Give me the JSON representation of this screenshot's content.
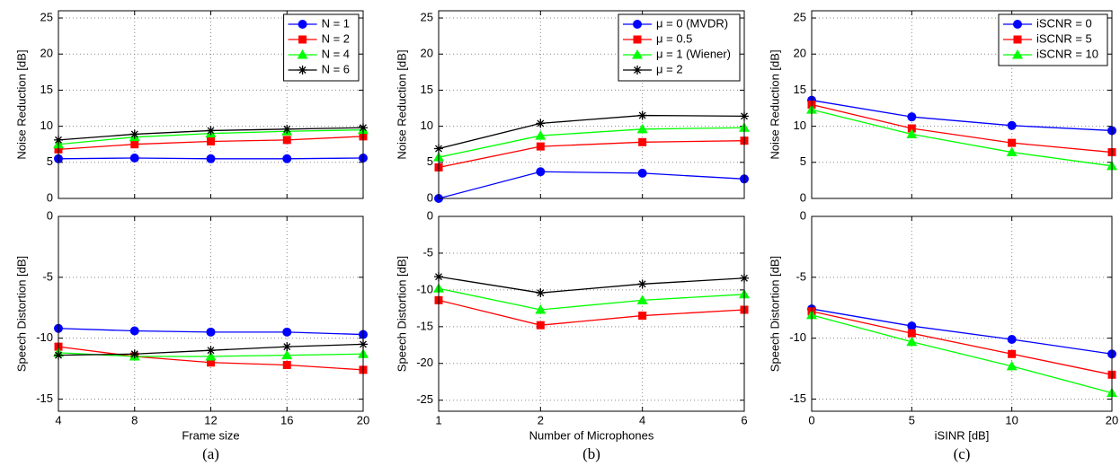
{
  "chart_data": [
    {
      "type": "line",
      "caption": "(a)",
      "xlabel": "Frame size",
      "categories": [
        "4",
        "8",
        "12",
        "16",
        "20"
      ],
      "legend": "upper right",
      "grid": true,
      "top": {
        "ylabel": "Noise Reduction [dB]",
        "ylim": [
          0,
          26
        ],
        "yticks": [
          0,
          5,
          10,
          15,
          20,
          25
        ],
        "series": [
          {
            "name": "N = 1",
            "color": "#0000ff",
            "marker": "circle",
            "values": [
              5.5,
              5.6,
              5.5,
              5.5,
              5.6
            ]
          },
          {
            "name": "N = 2",
            "color": "#ff0000",
            "marker": "square",
            "values": [
              6.8,
              7.5,
              7.9,
              8.1,
              8.6
            ]
          },
          {
            "name": "N = 4",
            "color": "#00ff00",
            "marker": "triangle",
            "values": [
              7.5,
              8.5,
              9.0,
              9.3,
              9.5
            ]
          },
          {
            "name": "N = 6",
            "color": "#000000",
            "marker": "star",
            "values": [
              8.1,
              8.9,
              9.4,
              9.6,
              9.8
            ]
          }
        ]
      },
      "bottom": {
        "ylabel": "Speech Distortion [dB]",
        "ylim": [
          -16,
          0
        ],
        "yticks": [
          -15,
          -10,
          -5,
          0
        ],
        "series": [
          {
            "color": "#0000ff",
            "marker": "circle",
            "values": [
              -9.2,
              -9.4,
              -9.5,
              -9.5,
              -9.7
            ]
          },
          {
            "color": "#ff0000",
            "marker": "square",
            "values": [
              -10.7,
              -11.5,
              -12.0,
              -12.2,
              -12.6
            ]
          },
          {
            "color": "#00ff00",
            "marker": "triangle",
            "values": [
              -11.2,
              -11.5,
              -11.5,
              -11.4,
              -11.3
            ]
          },
          {
            "color": "#000000",
            "marker": "star",
            "values": [
              -11.4,
              -11.3,
              -11.0,
              -10.7,
              -10.5
            ]
          }
        ]
      }
    },
    {
      "type": "line",
      "caption": "(b)",
      "xlabel": "Number of Microphones",
      "categories": [
        "1",
        "2",
        "4",
        "6"
      ],
      "legend": "upper right",
      "grid": true,
      "top": {
        "ylabel": "Noise Reduction [dB]",
        "ylim": [
          0,
          26
        ],
        "yticks": [
          0,
          5,
          10,
          15,
          20,
          25
        ],
        "series": [
          {
            "name": "μ = 0 (MVDR)",
            "color": "#0000ff",
            "marker": "circle",
            "values": [
              0,
              3.7,
              3.5,
              2.7
            ]
          },
          {
            "name": "μ = 0.5",
            "color": "#ff0000",
            "marker": "square",
            "values": [
              4.3,
              7.2,
              7.8,
              8.0
            ]
          },
          {
            "name": "μ = 1 (Wiener)",
            "color": "#00ff00",
            "marker": "triangle",
            "values": [
              5.7,
              8.7,
              9.6,
              9.8
            ]
          },
          {
            "name": "μ = 2",
            "color": "#000000",
            "marker": "star",
            "values": [
              6.9,
              10.4,
              11.5,
              11.4
            ]
          }
        ]
      },
      "bottom": {
        "ylabel": "Speech Distortion [dB]",
        "ylim": [
          -26.5,
          0
        ],
        "yticks": [
          -25,
          -20,
          -15,
          -10,
          -5,
          0
        ],
        "series": [
          {
            "color": "#ff0000",
            "marker": "square",
            "values": [
              -11.4,
              -14.8,
              -13.5,
              -12.7
            ]
          },
          {
            "color": "#00ff00",
            "marker": "triangle",
            "values": [
              -9.8,
              -12.7,
              -11.4,
              -10.6
            ]
          },
          {
            "color": "#000000",
            "marker": "star",
            "values": [
              -8.2,
              -10.4,
              -9.2,
              -8.4
            ]
          }
        ]
      }
    },
    {
      "type": "line",
      "caption": "(c)",
      "xlabel": "iSINR [dB]",
      "categories": [
        "0",
        "5",
        "10",
        "20"
      ],
      "legend": "upper right",
      "grid": true,
      "top": {
        "ylabel": "Noise Reduction [dB]",
        "ylim": [
          0,
          26
        ],
        "yticks": [
          0,
          5,
          10,
          15,
          20,
          25
        ],
        "series": [
          {
            "name": "iSCNR = 0",
            "color": "#0000ff",
            "marker": "circle",
            "values": [
              13.6,
              11.3,
              10.1,
              9.4
            ]
          },
          {
            "name": "iSCNR = 5",
            "color": "#ff0000",
            "marker": "square",
            "values": [
              13.0,
              9.7,
              7.7,
              6.4
            ]
          },
          {
            "name": "iSCNR = 10",
            "color": "#00ff00",
            "marker": "triangle",
            "values": [
              12.3,
              8.9,
              6.4,
              4.5
            ]
          }
        ]
      },
      "bottom": {
        "ylabel": "Speech Distortion [dB]",
        "ylim": [
          -16,
          0
        ],
        "yticks": [
          -15,
          -10,
          -5,
          0
        ],
        "series": [
          {
            "color": "#0000ff",
            "marker": "circle",
            "values": [
              -7.6,
              -9.0,
              -10.1,
              -11.3
            ]
          },
          {
            "color": "#ff0000",
            "marker": "square",
            "values": [
              -7.8,
              -9.6,
              -11.3,
              -13.0
            ]
          },
          {
            "color": "#00ff00",
            "marker": "triangle",
            "values": [
              -8.1,
              -10.3,
              -12.3,
              -14.5
            ]
          }
        ]
      }
    }
  ]
}
